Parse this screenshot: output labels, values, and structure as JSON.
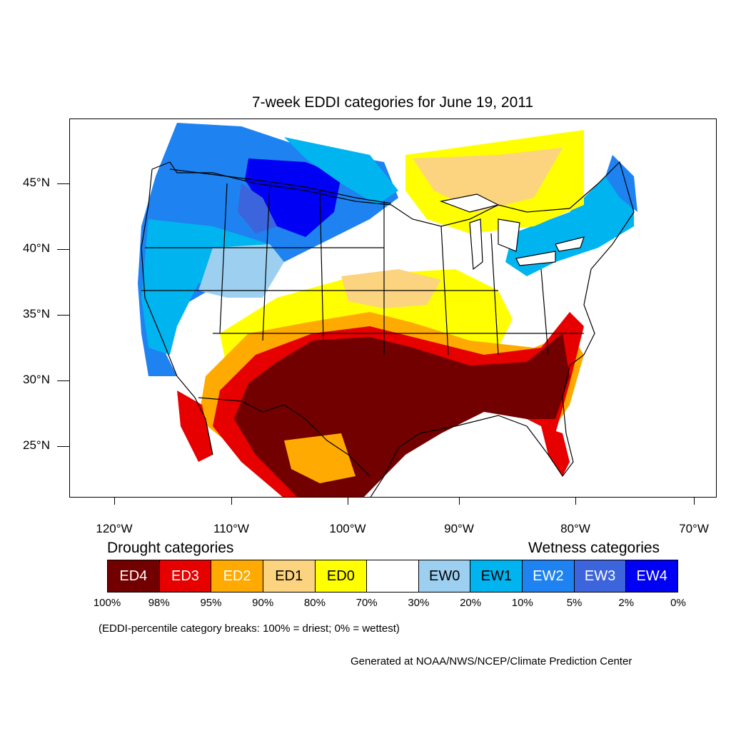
{
  "title": "7-week EDDI categories for June 19, 2011",
  "lat_axis": {
    "labels": [
      "45°N",
      "40°N",
      "35°N",
      "30°N",
      "25°N"
    ]
  },
  "lon_axis": {
    "labels": [
      "120°W",
      "110°W",
      "100°W",
      "90°W",
      "80°W",
      "70°W"
    ]
  },
  "legend": {
    "drought_heading": "Drought categories",
    "wetness_heading": "Wetness categories",
    "categories": [
      {
        "label": "ED4",
        "color": "#730000",
        "text_color": "#ffffff"
      },
      {
        "label": "ED3",
        "color": "#e60000",
        "text_color": "#ffffff"
      },
      {
        "label": "ED2",
        "color": "#ffaa00",
        "text_color": "#ffffff"
      },
      {
        "label": "ED1",
        "color": "#fcd37f",
        "text_color": "#000000"
      },
      {
        "label": "ED0",
        "color": "#ffff00",
        "text_color": "#000000"
      },
      {
        "label": "",
        "color": "#ffffff",
        "text_color": "#000000"
      },
      {
        "label": "EW0",
        "color": "#9dd0f0",
        "text_color": "#000000"
      },
      {
        "label": "EW1",
        "color": "#00b4f0",
        "text_color": "#000000"
      },
      {
        "label": "EW2",
        "color": "#1e82f0",
        "text_color": "#ffffff"
      },
      {
        "label": "EW3",
        "color": "#3c64dc",
        "text_color": "#ffffff"
      },
      {
        "label": "EW4",
        "color": "#0000f5",
        "text_color": "#ffffff"
      }
    ],
    "breaks": [
      "100%",
      "98%",
      "95%",
      "90%",
      "80%",
      "70%",
      "30%",
      "20%",
      "10%",
      "5%",
      "2%",
      "0%"
    ]
  },
  "note": "(EDDI-percentile category breaks: 100% = driest; 0% = wettest)",
  "credit": "Generated at NOAA/NWS/NCEP/Climate Prediction Center"
}
